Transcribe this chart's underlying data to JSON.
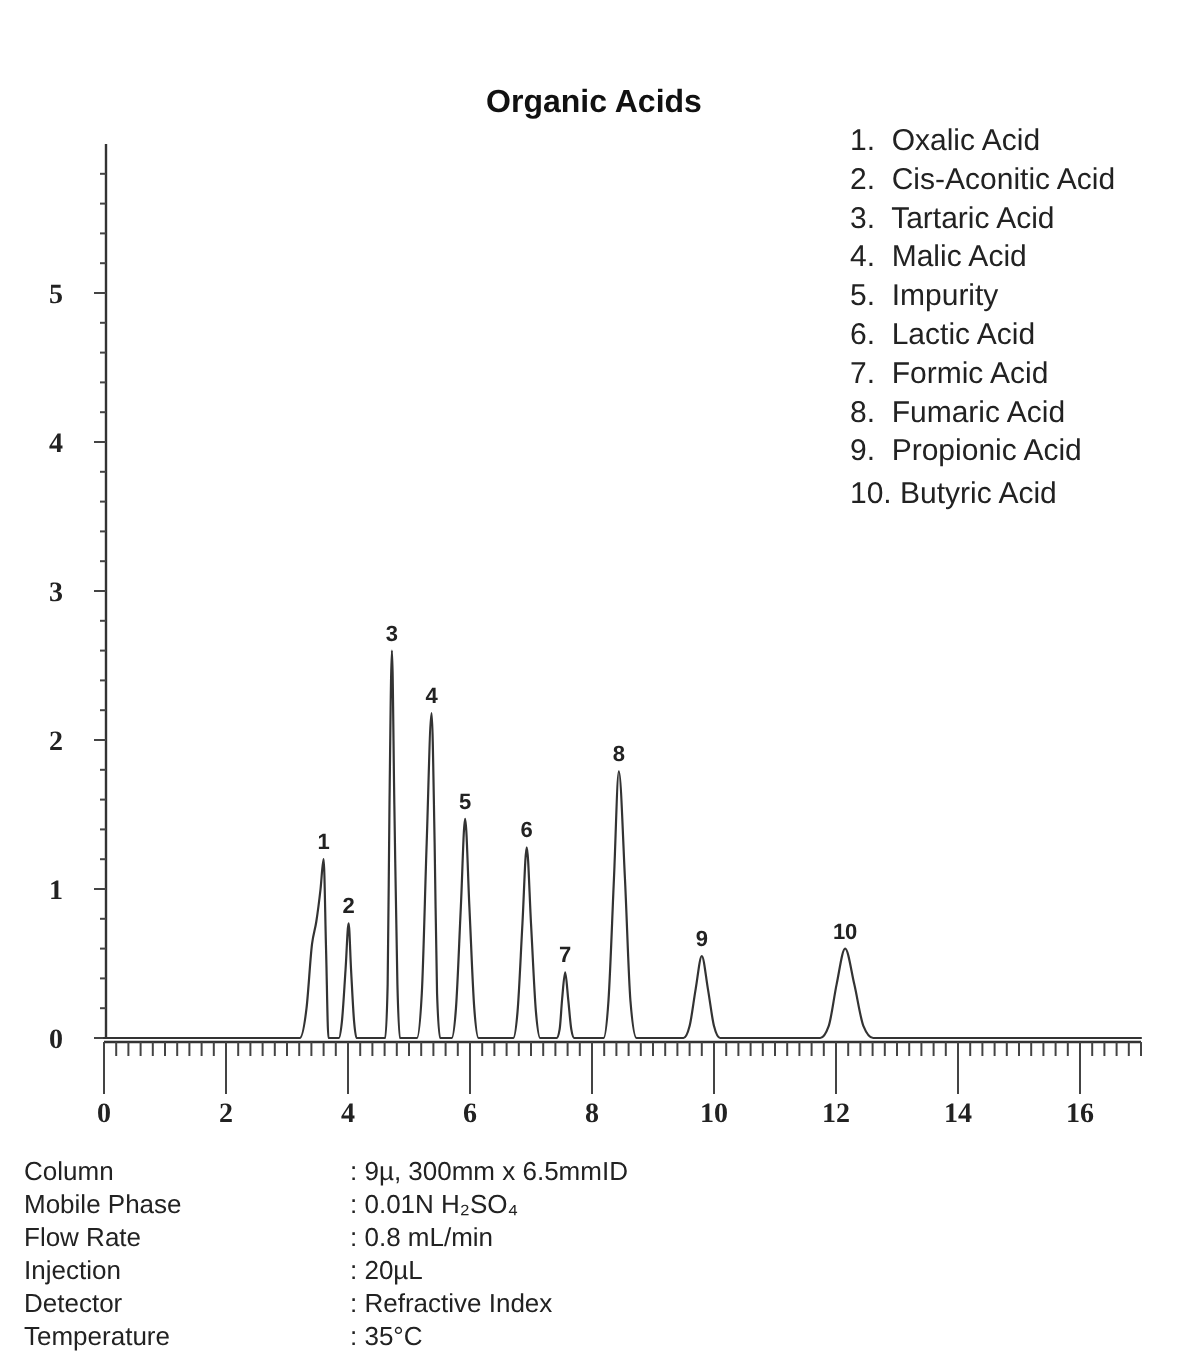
{
  "chart_data": {
    "type": "line",
    "title": "Organic Acids",
    "color": "#333333",
    "x": [
      0,
      3.0,
      3.21,
      3.32,
      3.41,
      3.48,
      3.55,
      3.6,
      3.64,
      3.68,
      3.85,
      3.9,
      3.96,
      4.01,
      4.05,
      4.1,
      4.14,
      4.61,
      4.65,
      4.68,
      4.72,
      4.76,
      4.81,
      4.85,
      5.13,
      5.21,
      5.29,
      5.37,
      5.42,
      5.46,
      5.51,
      5.7,
      5.77,
      5.85,
      5.92,
      5.99,
      6.07,
      6.14,
      6.71,
      6.78,
      6.86,
      6.93,
      7.0,
      7.08,
      7.15,
      7.42,
      7.47,
      7.51,
      7.56,
      7.61,
      7.66,
      7.71,
      8.19,
      8.27,
      8.36,
      8.44,
      8.54,
      8.63,
      8.73,
      9.5,
      9.6,
      9.7,
      9.8,
      9.9,
      10.0,
      10.1,
      11.74,
      11.88,
      12.01,
      12.15,
      12.3,
      12.45,
      12.61,
      17
    ],
    "values": [
      0,
      0,
      0,
      0.2,
      0.63,
      0.78,
      1.0,
      1.2,
      0.6,
      0,
      0,
      0.11,
      0.46,
      0.77,
      0.46,
      0.11,
      0,
      0,
      0.36,
      1.56,
      2.6,
      1.56,
      0.36,
      0,
      0,
      0.3,
      1.31,
      2.18,
      1.31,
      0.3,
      0,
      0,
      0.2,
      0.88,
      1.47,
      0.88,
      0.2,
      0,
      0,
      0.18,
      0.77,
      1.28,
      0.77,
      0.18,
      0,
      0,
      0.06,
      0.26,
      0.44,
      0.26,
      0.06,
      0,
      0,
      0.25,
      1.07,
      1.79,
      1.07,
      0.25,
      0,
      0,
      0.08,
      0.33,
      0.55,
      0.33,
      0.08,
      0,
      0,
      0.08,
      0.36,
      0.6,
      0.36,
      0.08,
      0,
      0
    ],
    "xlim": [
      0,
      17
    ],
    "ylim": [
      0,
      6
    ],
    "xticks": [
      0,
      {
        "value": 0.2,
        "label": null
      },
      {
        "value": 0.4,
        "label": null
      },
      {
        "value": 0.6,
        "label": null
      },
      {
        "value": 0.8,
        "label": null
      },
      {
        "value": 1,
        "label": null
      },
      {
        "value": 1.2,
        "label": null
      },
      {
        "value": 1.4,
        "label": null
      },
      {
        "value": 1.6,
        "label": null
      },
      {
        "value": 1.8,
        "label": null
      },
      2,
      {
        "value": 2.2,
        "label": null
      },
      {
        "value": 2.4,
        "label": null
      },
      {
        "value": 2.6,
        "label": null
      },
      {
        "value": 2.8,
        "label": null
      },
      {
        "value": 3,
        "label": null
      },
      {
        "value": 3.2,
        "label": null
      },
      {
        "value": 3.4,
        "label": null
      },
      {
        "value": 3.6,
        "label": null
      },
      {
        "value": 3.8,
        "label": null
      },
      4,
      {
        "value": 4.2,
        "label": null
      },
      {
        "value": 4.4,
        "label": null
      },
      {
        "value": 4.6,
        "label": null
      },
      {
        "value": 4.8,
        "label": null
      },
      {
        "value": 5,
        "label": null
      },
      {
        "value": 5.2,
        "label": null
      },
      {
        "value": 5.4,
        "label": null
      },
      {
        "value": 5.6,
        "label": null
      },
      {
        "value": 5.8,
        "label": null
      },
      6,
      {
        "value": 6.2,
        "label": null
      },
      {
        "value": 6.4,
        "label": null
      },
      {
        "value": 6.6,
        "label": null
      },
      {
        "value": 6.8,
        "label": null
      },
      {
        "value": 7,
        "label": null
      },
      {
        "value": 7.2,
        "label": null
      },
      {
        "value": 7.4,
        "label": null
      },
      {
        "value": 7.6,
        "label": null
      },
      {
        "value": 7.8,
        "label": null
      },
      8,
      {
        "value": 8.2,
        "label": null
      },
      {
        "value": 8.4,
        "label": null
      },
      {
        "value": 8.6,
        "label": null
      },
      {
        "value": 8.8,
        "label": null
      },
      {
        "value": 9,
        "label": null
      },
      {
        "value": 9.2,
        "label": null
      },
      {
        "value": 9.4,
        "label": null
      },
      {
        "value": 9.6,
        "label": null
      },
      {
        "value": 9.8,
        "label": null
      },
      10,
      {
        "value": 10.2,
        "label": null
      },
      {
        "value": 10.4,
        "label": null
      },
      {
        "value": 10.6,
        "label": null
      },
      {
        "value": 10.8,
        "label": null
      },
      {
        "value": 11,
        "label": null
      },
      {
        "value": 11.2,
        "label": null
      },
      {
        "value": 11.4,
        "label": null
      },
      {
        "value": 11.6,
        "label": null
      },
      {
        "value": 11.8,
        "label": null
      },
      12,
      {
        "value": 12.2,
        "label": null
      },
      {
        "value": 12.4,
        "label": null
      },
      {
        "value": 12.6,
        "label": null
      },
      {
        "value": 12.8,
        "label": null
      },
      {
        "value": 13,
        "label": null
      },
      {
        "value": 13.2,
        "label": null
      },
      {
        "value": 13.4,
        "label": null
      },
      {
        "value": 13.6,
        "label": null
      },
      {
        "value": 13.8,
        "label": null
      },
      14,
      {
        "value": 14.2,
        "label": null
      },
      {
        "value": 14.4,
        "label": null
      },
      {
        "value": 14.6,
        "label": null
      },
      {
        "value": 14.8,
        "label": null
      },
      {
        "value": 15,
        "label": null
      },
      {
        "value": 15.2,
        "label": null
      },
      {
        "value": 15.4,
        "label": null
      },
      {
        "value": 15.6,
        "label": null
      },
      {
        "value": 15.8,
        "label": null
      },
      16,
      {
        "value": 16.2,
        "label": null
      },
      {
        "value": 16.4,
        "label": null
      },
      {
        "value": 16.6,
        "label": null
      },
      {
        "value": 16.8,
        "label": null
      },
      {
        "value": 17,
        "label": null
      }
    ],
    "yticks": [
      0,
      {
        "value": 0.2,
        "label": null
      },
      {
        "value": 0.4,
        "label": null
      },
      {
        "value": 0.6,
        "label": null
      },
      {
        "value": 0.8,
        "label": null
      },
      1,
      {
        "value": 1.2,
        "label": null
      },
      {
        "value": 1.4,
        "label": null
      },
      {
        "value": 1.6,
        "label": null
      },
      {
        "value": 1.8,
        "label": null
      },
      2,
      {
        "value": 2.2,
        "label": null
      },
      {
        "value": 2.4,
        "label": null
      },
      {
        "value": 2.6,
        "label": null
      },
      {
        "value": 2.8,
        "label": null
      },
      3,
      {
        "value": 3.2,
        "label": null
      },
      {
        "value": 3.4,
        "label": null
      },
      {
        "value": 3.6,
        "label": null
      },
      {
        "value": 3.8,
        "label": null
      },
      4,
      {
        "value": 4.2,
        "label": null
      },
      {
        "value": 4.4,
        "label": null
      },
      {
        "value": 4.6,
        "label": null
      },
      {
        "value": 4.8,
        "label": null
      },
      5,
      {
        "value": 5.2,
        "label": null
      },
      {
        "value": 5.4,
        "label": null
      },
      {
        "value": 5.6,
        "label": null
      },
      {
        "value": 5.8,
        "label": null
      }
    ],
    "annotations": [
      {
        "text": "1",
        "x": 3.6,
        "y": 1.2
      },
      {
        "text": "2",
        "x": 4.01,
        "y": 0.77
      },
      {
        "text": "3",
        "x": 4.72,
        "y": 2.6
      },
      {
        "text": "4",
        "x": 5.37,
        "y": 2.18
      },
      {
        "text": "5",
        "x": 5.92,
        "y": 1.47
      },
      {
        "text": "6",
        "x": 6.93,
        "y": 1.28
      },
      {
        "text": "7",
        "x": 7.56,
        "y": 0.44
      },
      {
        "text": "8",
        "x": 8.44,
        "y": 1.79
      },
      {
        "text": "9",
        "x": 9.8,
        "y": 0.55
      },
      {
        "text": "10",
        "x": 12.15,
        "y": 0.6
      },
      "1.  Oxalic Acid",
      "2.  Cis-Aconitic Acid",
      "3.  Tartaric Acid",
      "4.  Malic Acid",
      "5.  Impurity",
      "6.  Lactic Acid",
      "7.  Formic Acid",
      "8.  Fumaric Acid",
      "9.  Propionic Acid",
      "10. Butyric Acid",
      "Column",
      ": 9µ, 300mm x 6.5mmID",
      "Mobile Phase",
      ": 0.01N H₂SO₄",
      "Flow Rate",
      ": 0.8 mL/min",
      "Injection",
      ": 20µL",
      "Detector",
      ": Refractive Index",
      "Temperature",
      ": 35°C"
    ]
  }
}
